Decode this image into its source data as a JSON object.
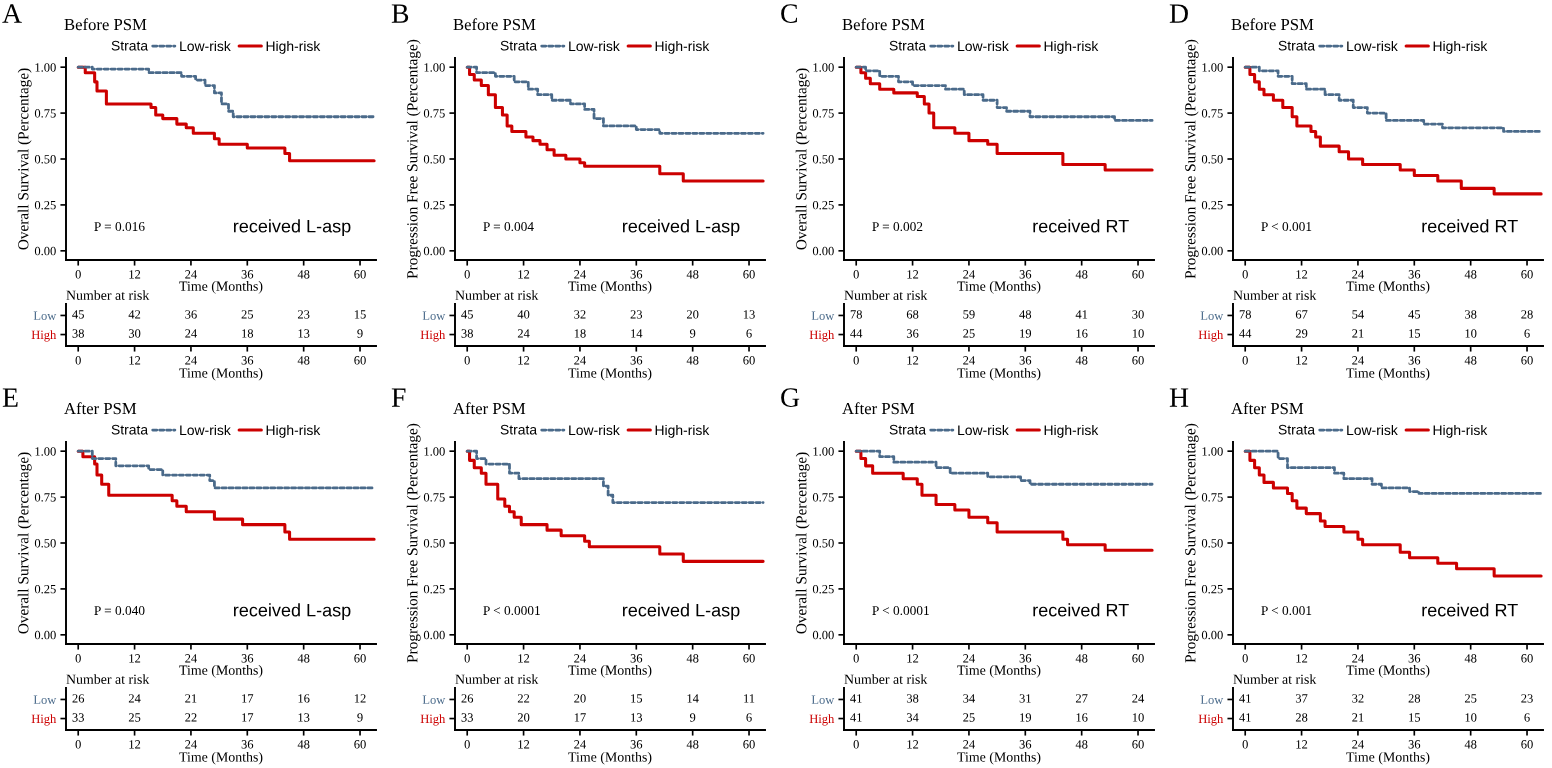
{
  "chart_data": [
    {
      "type": "step",
      "title": "Before PSM",
      "xlabel": "Time (Months)",
      "ylabel": "Overall Survival (Percentage)",
      "legend_title": "Strata",
      "legend": "top",
      "xlim": [
        -2.6,
        63.4
      ],
      "ylim": [
        -0.05,
        1.05
      ],
      "xticks": [
        0,
        12,
        24,
        36,
        48,
        60
      ],
      "yticks": [
        {
          "value": 0,
          "label": "0.00"
        },
        {
          "value": 0.25,
          "label": "0.25"
        },
        {
          "value": 0.5,
          "label": "0.50"
        },
        {
          "value": 0.75,
          "label": "0.75"
        },
        {
          "value": 1,
          "label": "1.00"
        }
      ],
      "annotations": [
        "A",
        "P = 0.016",
        "received L-asp"
      ],
      "series": [
        {
          "name": "Low-risk",
          "color": "#4a6a8a",
          "line_style": "dotted",
          "x": [
            0,
            3,
            15,
            22,
            25,
            27,
            29,
            30.5,
            32,
            33,
            63
          ],
          "values": [
            1,
            0.99,
            0.97,
            0.95,
            0.93,
            0.9,
            0.86,
            0.8,
            0.76,
            0.73,
            0.73
          ]
        },
        {
          "name": "High-risk",
          "color": "#cc0000",
          "line_style": "solid",
          "x": [
            0,
            1.5,
            3.5,
            4,
            6,
            15.5,
            16.5,
            18,
            21,
            23,
            24.5,
            29,
            30,
            36,
            44,
            45,
            63
          ],
          "values": [
            1,
            0.97,
            0.92,
            0.87,
            0.8,
            0.78,
            0.74,
            0.72,
            0.69,
            0.67,
            0.64,
            0.61,
            0.58,
            0.56,
            0.53,
            0.49,
            0.49
          ]
        }
      ]
    },
    {
      "type": "heatmap",
      "title": "Number at risk",
      "xlabel": "Time (Months)",
      "data_labels": true,
      "categories": [
        "0",
        "12",
        "24",
        "36",
        "48",
        "60"
      ],
      "y_categories": [
        "Low",
        "High"
      ],
      "colors": [
        "#4a6a8a",
        "#cc0000"
      ],
      "cells": [
        [
          45,
          42,
          36,
          25,
          23,
          15
        ],
        [
          38,
          30,
          24,
          18,
          13,
          9
        ]
      ]
    },
    {
      "type": "step",
      "title": "Before PSM",
      "xlabel": "Time (Months)",
      "ylabel": "Progression Free Survival (Percentage)",
      "legend_title": "Strata",
      "legend": "top",
      "xlim": [
        -2.6,
        63.4
      ],
      "ylim": [
        -0.05,
        1.05
      ],
      "xticks": [
        0,
        12,
        24,
        36,
        48,
        60
      ],
      "yticks": [
        {
          "value": 0,
          "label": "0.00"
        },
        {
          "value": 0.25,
          "label": "0.25"
        },
        {
          "value": 0.5,
          "label": "0.50"
        },
        {
          "value": 0.75,
          "label": "0.75"
        },
        {
          "value": 1,
          "label": "1.00"
        }
      ],
      "annotations": [
        "B",
        "P = 0.004",
        "received L-asp"
      ],
      "series": [
        {
          "name": "Low-risk",
          "color": "#4a6a8a",
          "line_style": "dotted",
          "x": [
            0,
            2,
            6,
            10,
            13,
            15,
            18,
            22,
            25,
            27,
            29,
            36,
            41,
            63
          ],
          "values": [
            1,
            0.97,
            0.95,
            0.92,
            0.88,
            0.85,
            0.82,
            0.8,
            0.77,
            0.72,
            0.68,
            0.66,
            0.64,
            0.64
          ]
        },
        {
          "name": "High-risk",
          "color": "#cc0000",
          "line_style": "solid",
          "x": [
            0,
            0.5,
            1.5,
            3,
            4.5,
            6,
            7.5,
            8.5,
            9.5,
            12.5,
            14,
            15.5,
            17,
            18.5,
            21,
            24,
            25,
            41,
            46,
            63
          ],
          "values": [
            1,
            0.96,
            0.93,
            0.9,
            0.85,
            0.78,
            0.74,
            0.68,
            0.65,
            0.62,
            0.6,
            0.58,
            0.55,
            0.52,
            0.5,
            0.48,
            0.46,
            0.42,
            0.38,
            0.38
          ]
        }
      ]
    },
    {
      "type": "heatmap",
      "title": "Number at risk",
      "xlabel": "Time (Months)",
      "data_labels": true,
      "categories": [
        "0",
        "12",
        "24",
        "36",
        "48",
        "60"
      ],
      "y_categories": [
        "Low",
        "High"
      ],
      "colors": [
        "#4a6a8a",
        "#cc0000"
      ],
      "cells": [
        [
          45,
          40,
          32,
          23,
          20,
          13
        ],
        [
          38,
          24,
          18,
          14,
          9,
          6
        ]
      ]
    },
    {
      "type": "step",
      "title": "Before PSM",
      "xlabel": "Time (Months)",
      "ylabel": "Overall Survival (Percentage)",
      "legend_title": "Strata",
      "legend": "top",
      "xlim": [
        -2.6,
        63.4
      ],
      "ylim": [
        -0.05,
        1.05
      ],
      "xticks": [
        0,
        12,
        24,
        36,
        48,
        60
      ],
      "yticks": [
        {
          "value": 0,
          "label": "0.00"
        },
        {
          "value": 0.25,
          "label": "0.25"
        },
        {
          "value": 0.5,
          "label": "0.50"
        },
        {
          "value": 0.75,
          "label": "0.75"
        },
        {
          "value": 1,
          "label": "1.00"
        }
      ],
      "annotations": [
        "C",
        "P = 0.002",
        "received RT"
      ],
      "series": [
        {
          "name": "Low-risk",
          "color": "#4a6a8a",
          "line_style": "dotted",
          "x": [
            0,
            2,
            5,
            9,
            12,
            19,
            23,
            27,
            30,
            32,
            37,
            55,
            63
          ],
          "values": [
            1,
            0.98,
            0.95,
            0.92,
            0.9,
            0.88,
            0.85,
            0.82,
            0.78,
            0.76,
            0.73,
            0.71,
            0.71
          ]
        },
        {
          "name": "High-risk",
          "color": "#cc0000",
          "line_style": "solid",
          "x": [
            0,
            1,
            2,
            3,
            5,
            8,
            13,
            14.5,
            15.5,
            16.5,
            21,
            24,
            28,
            30,
            44,
            53,
            63
          ],
          "values": [
            1,
            0.97,
            0.94,
            0.91,
            0.88,
            0.86,
            0.84,
            0.8,
            0.75,
            0.67,
            0.64,
            0.6,
            0.58,
            0.53,
            0.47,
            0.44,
            0.44
          ]
        }
      ]
    },
    {
      "type": "heatmap",
      "title": "Number at risk",
      "xlabel": "Time (Months)",
      "data_labels": true,
      "categories": [
        "0",
        "12",
        "24",
        "36",
        "48",
        "60"
      ],
      "y_categories": [
        "Low",
        "High"
      ],
      "colors": [
        "#4a6a8a",
        "#cc0000"
      ],
      "cells": [
        [
          78,
          68,
          59,
          48,
          41,
          30
        ],
        [
          44,
          36,
          25,
          19,
          16,
          10
        ]
      ]
    },
    {
      "type": "step",
      "title": "Before PSM",
      "xlabel": "Time (Months)",
      "ylabel": "Progression Free Survival (Percentage)",
      "legend_title": "Strata",
      "legend": "top",
      "xlim": [
        -2.6,
        63.4
      ],
      "ylim": [
        -0.05,
        1.05
      ],
      "xticks": [
        0,
        12,
        24,
        36,
        48,
        60
      ],
      "yticks": [
        {
          "value": 0,
          "label": "0.00"
        },
        {
          "value": 0.25,
          "label": "0.25"
        },
        {
          "value": 0.5,
          "label": "0.50"
        },
        {
          "value": 0.75,
          "label": "0.75"
        },
        {
          "value": 1,
          "label": "1.00"
        }
      ],
      "annotations": [
        "D",
        "P < 0.001",
        "received RT"
      ],
      "series": [
        {
          "name": "Low-risk",
          "color": "#4a6a8a",
          "line_style": "dotted",
          "x": [
            0,
            3,
            7,
            10,
            13,
            17,
            20,
            23,
            26,
            30,
            38,
            42,
            55,
            63
          ],
          "values": [
            1,
            0.98,
            0.95,
            0.91,
            0.88,
            0.85,
            0.82,
            0.78,
            0.75,
            0.71,
            0.69,
            0.67,
            0.65,
            0.65
          ]
        },
        {
          "name": "High-risk",
          "color": "#cc0000",
          "line_style": "solid",
          "x": [
            0,
            1,
            2,
            3,
            4,
            6,
            8,
            10,
            11,
            14,
            15,
            16,
            20,
            22,
            25,
            33,
            36,
            41,
            46,
            53,
            63
          ],
          "values": [
            1,
            0.96,
            0.92,
            0.88,
            0.85,
            0.82,
            0.78,
            0.73,
            0.68,
            0.65,
            0.62,
            0.57,
            0.54,
            0.5,
            0.47,
            0.44,
            0.41,
            0.38,
            0.34,
            0.31,
            0.31
          ]
        }
      ]
    },
    {
      "type": "heatmap",
      "title": "Number at risk",
      "xlabel": "Time (Months)",
      "data_labels": true,
      "categories": [
        "0",
        "12",
        "24",
        "36",
        "48",
        "60"
      ],
      "y_categories": [
        "Low",
        "High"
      ],
      "colors": [
        "#4a6a8a",
        "#cc0000"
      ],
      "cells": [
        [
          78,
          67,
          54,
          45,
          38,
          28
        ],
        [
          44,
          29,
          21,
          15,
          10,
          6
        ]
      ]
    },
    {
      "type": "step",
      "title": "After PSM",
      "xlabel": "Time (Months)",
      "ylabel": "Overall Survival (Percentage)",
      "legend_title": "Strata",
      "legend": "top",
      "xlim": [
        -2.6,
        63.4
      ],
      "ylim": [
        -0.05,
        1.05
      ],
      "xticks": [
        0,
        12,
        24,
        36,
        48,
        60
      ],
      "yticks": [
        {
          "value": 0,
          "label": "0.00"
        },
        {
          "value": 0.25,
          "label": "0.25"
        },
        {
          "value": 0.5,
          "label": "0.50"
        },
        {
          "value": 0.75,
          "label": "0.75"
        },
        {
          "value": 1,
          "label": "1.00"
        }
      ],
      "annotations": [
        "E",
        "P = 0.040",
        "received L-asp"
      ],
      "series": [
        {
          "name": "Low-risk",
          "color": "#4a6a8a",
          "line_style": "dotted",
          "x": [
            0,
            3,
            8,
            15,
            18,
            28,
            29,
            63
          ],
          "values": [
            1,
            0.96,
            0.92,
            0.9,
            0.87,
            0.84,
            0.8,
            0.8
          ]
        },
        {
          "name": "High-risk",
          "color": "#cc0000",
          "line_style": "solid",
          "x": [
            0,
            1,
            3.5,
            4,
            5,
            6.5,
            20,
            21,
            23,
            29,
            35,
            44,
            45,
            63
          ],
          "values": [
            1,
            0.97,
            0.93,
            0.87,
            0.82,
            0.76,
            0.73,
            0.7,
            0.67,
            0.63,
            0.6,
            0.56,
            0.52,
            0.52
          ]
        }
      ]
    },
    {
      "type": "heatmap",
      "title": "Number at risk",
      "xlabel": "Time (Months)",
      "data_labels": true,
      "categories": [
        "0",
        "12",
        "24",
        "36",
        "48",
        "60"
      ],
      "y_categories": [
        "Low",
        "High"
      ],
      "colors": [
        "#4a6a8a",
        "#cc0000"
      ],
      "cells": [
        [
          26,
          24,
          21,
          17,
          16,
          12
        ],
        [
          33,
          25,
          22,
          17,
          13,
          9
        ]
      ]
    },
    {
      "type": "step",
      "title": "After PSM",
      "xlabel": "Time (Months)",
      "ylabel": "Progression Free Survival (Percentage)",
      "legend_title": "Strata",
      "legend": "top",
      "xlim": [
        -2.6,
        63.4
      ],
      "ylim": [
        -0.05,
        1.05
      ],
      "xticks": [
        0,
        12,
        24,
        36,
        48,
        60
      ],
      "yticks": [
        {
          "value": 0,
          "label": "0.00"
        },
        {
          "value": 0.25,
          "label": "0.25"
        },
        {
          "value": 0.5,
          "label": "0.50"
        },
        {
          "value": 0.75,
          "label": "0.75"
        },
        {
          "value": 1,
          "label": "1.00"
        }
      ],
      "annotations": [
        "F",
        "P < 0.0001",
        "received L-asp"
      ],
      "series": [
        {
          "name": "Low-risk",
          "color": "#4a6a8a",
          "line_style": "dotted",
          "x": [
            0,
            2,
            4,
            9,
            11,
            29,
            30,
            31,
            63
          ],
          "values": [
            1,
            0.96,
            0.93,
            0.88,
            0.85,
            0.81,
            0.76,
            0.72,
            0.72
          ]
        },
        {
          "name": "High-risk",
          "color": "#cc0000",
          "line_style": "solid",
          "x": [
            0,
            0.5,
            1.5,
            3,
            4,
            6.5,
            8,
            9,
            10,
            11.5,
            17,
            20,
            25,
            26,
            41,
            46,
            63
          ],
          "values": [
            1,
            0.95,
            0.91,
            0.88,
            0.82,
            0.74,
            0.7,
            0.67,
            0.64,
            0.6,
            0.57,
            0.54,
            0.51,
            0.48,
            0.44,
            0.4,
            0.4
          ]
        }
      ]
    },
    {
      "type": "heatmap",
      "title": "Number at risk",
      "xlabel": "Time (Months)",
      "data_labels": true,
      "categories": [
        "0",
        "12",
        "24",
        "36",
        "48",
        "60"
      ],
      "y_categories": [
        "Low",
        "High"
      ],
      "colors": [
        "#4a6a8a",
        "#cc0000"
      ],
      "cells": [
        [
          26,
          22,
          20,
          15,
          14,
          11
        ],
        [
          33,
          20,
          17,
          13,
          9,
          6
        ]
      ]
    },
    {
      "type": "step",
      "title": "After PSM",
      "xlabel": "Time (Months)",
      "ylabel": "Overall Survival (Percentage)",
      "legend_title": "Strata",
      "legend": "top",
      "xlim": [
        -2.6,
        63.4
      ],
      "ylim": [
        -0.05,
        1.05
      ],
      "xticks": [
        0,
        12,
        24,
        36,
        48,
        60
      ],
      "yticks": [
        {
          "value": 0,
          "label": "0.00"
        },
        {
          "value": 0.25,
          "label": "0.25"
        },
        {
          "value": 0.5,
          "label": "0.50"
        },
        {
          "value": 0.75,
          "label": "0.75"
        },
        {
          "value": 1,
          "label": "1.00"
        }
      ],
      "annotations": [
        "G",
        "P < 0.0001",
        "received RT"
      ],
      "series": [
        {
          "name": "Low-risk",
          "color": "#4a6a8a",
          "line_style": "dotted",
          "x": [
            0,
            5,
            8,
            17,
            20,
            28,
            35,
            37,
            63
          ],
          "values": [
            1,
            0.97,
            0.94,
            0.91,
            0.88,
            0.86,
            0.84,
            0.82,
            0.82
          ]
        },
        {
          "name": "High-risk",
          "color": "#cc0000",
          "line_style": "solid",
          "x": [
            0,
            1,
            2,
            3.5,
            10,
            13,
            14,
            17,
            21,
            24,
            28,
            30,
            44,
            45,
            53,
            63
          ],
          "values": [
            1,
            0.96,
            0.92,
            0.88,
            0.85,
            0.82,
            0.76,
            0.71,
            0.68,
            0.64,
            0.61,
            0.56,
            0.52,
            0.49,
            0.46,
            0.46
          ]
        }
      ]
    },
    {
      "type": "heatmap",
      "title": "Number at risk",
      "xlabel": "Time (Months)",
      "data_labels": true,
      "categories": [
        "0",
        "12",
        "24",
        "36",
        "48",
        "60"
      ],
      "y_categories": [
        "Low",
        "High"
      ],
      "colors": [
        "#4a6a8a",
        "#cc0000"
      ],
      "cells": [
        [
          41,
          38,
          34,
          31,
          27,
          24
        ],
        [
          41,
          34,
          25,
          19,
          16,
          10
        ]
      ]
    },
    {
      "type": "step",
      "title": "After PSM",
      "xlabel": "Time (Months)",
      "ylabel": "Progression Free Survival (Percentage)",
      "legend_title": "Strata",
      "legend": "top",
      "xlim": [
        -2.6,
        63.4
      ],
      "ylim": [
        -0.05,
        1.05
      ],
      "xticks": [
        0,
        12,
        24,
        36,
        48,
        60
      ],
      "yticks": [
        {
          "value": 0,
          "label": "0.00"
        },
        {
          "value": 0.25,
          "label": "0.25"
        },
        {
          "value": 0.5,
          "label": "0.50"
        },
        {
          "value": 0.75,
          "label": "0.75"
        },
        {
          "value": 1,
          "label": "1.00"
        }
      ],
      "annotations": [
        "H",
        "P < 0.001",
        "received RT"
      ],
      "series": [
        {
          "name": "Low-risk",
          "color": "#4a6a8a",
          "line_style": "dotted",
          "x": [
            0,
            7,
            9,
            19,
            21,
            27,
            29,
            35,
            37,
            63
          ],
          "values": [
            1,
            0.96,
            0.91,
            0.88,
            0.85,
            0.82,
            0.8,
            0.78,
            0.77,
            0.77
          ]
        },
        {
          "name": "High-risk",
          "color": "#cc0000",
          "line_style": "solid",
          "x": [
            0,
            1,
            2,
            3,
            4,
            6,
            9,
            10,
            11,
            13,
            16,
            17,
            21,
            24,
            25,
            33,
            35,
            41,
            45,
            53,
            63
          ],
          "values": [
            1,
            0.95,
            0.91,
            0.87,
            0.83,
            0.8,
            0.77,
            0.73,
            0.69,
            0.66,
            0.62,
            0.59,
            0.56,
            0.52,
            0.49,
            0.45,
            0.42,
            0.39,
            0.36,
            0.32,
            0.32
          ]
        }
      ]
    },
    {
      "type": "heatmap",
      "title": "Number at risk",
      "xlabel": "Time (Months)",
      "data_labels": true,
      "categories": [
        "0",
        "12",
        "24",
        "36",
        "48",
        "60"
      ],
      "y_categories": [
        "Low",
        "High"
      ],
      "colors": [
        "#4a6a8a",
        "#cc0000"
      ],
      "cells": [
        [
          41,
          37,
          32,
          28,
          25,
          23
        ],
        [
          41,
          28,
          21,
          15,
          10,
          6
        ]
      ]
    }
  ]
}
